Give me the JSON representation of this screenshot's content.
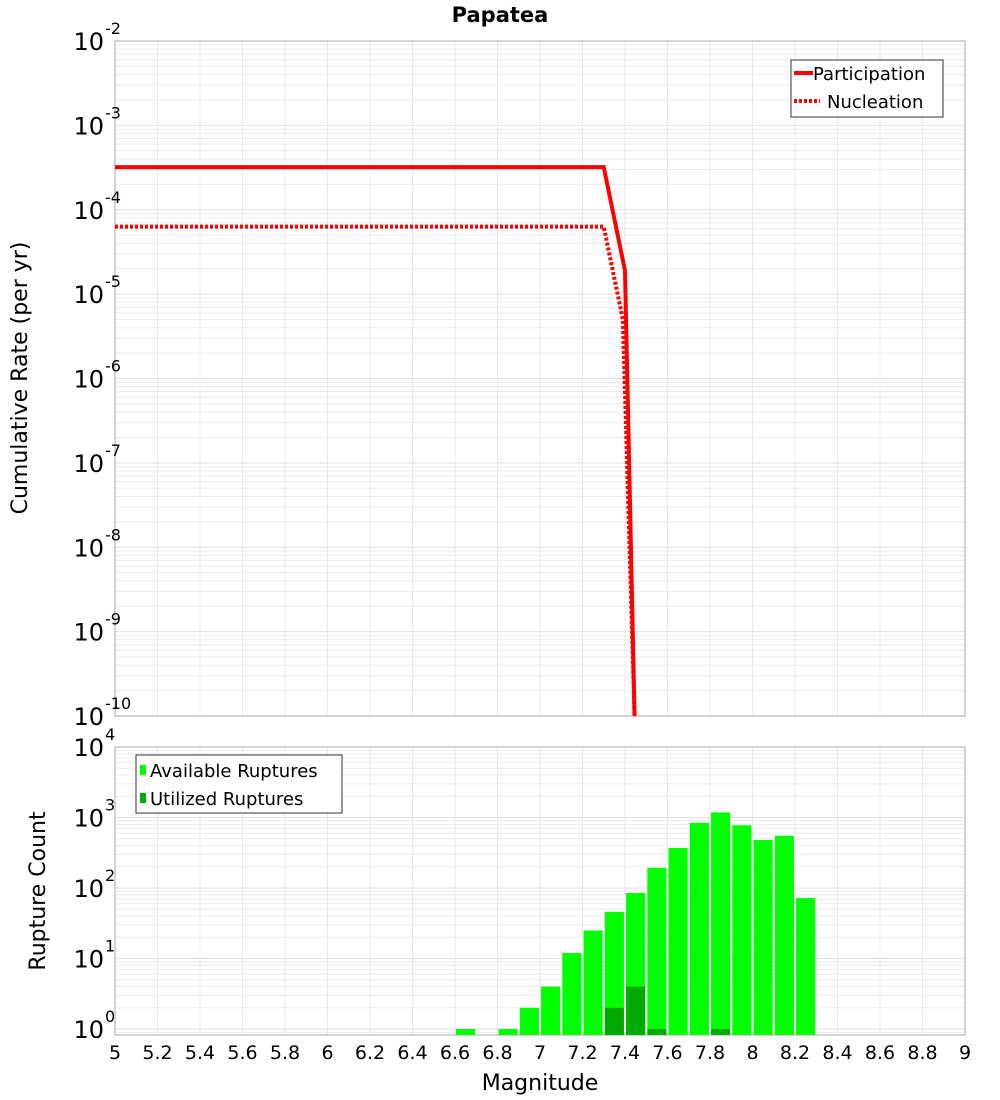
{
  "chart_data": [
    {
      "type": "line",
      "title": "Papatea",
      "xlabel": "Magnitude",
      "ylabel": "Cumulative Rate (per yr)",
      "xlim": [
        5,
        9
      ],
      "ylim_log10": [
        -10,
        -2
      ],
      "yscale": "log",
      "grid": true,
      "legend_placement": "top-right",
      "y_tick_exponents": [
        "-2",
        "-3",
        "-4",
        "-5",
        "-6",
        "-7",
        "-8",
        "-9",
        "-10"
      ],
      "series": [
        {
          "name": "Participation",
          "color": "#ff0000",
          "style": "solid",
          "x": [
            5.0,
            7.3,
            7.4,
            7.445
          ],
          "y": [
            0.00032,
            0.00032,
            1.9e-05,
            1e-10
          ]
        },
        {
          "name": "Nucleation",
          "color": "#ff0000",
          "style": "dotted",
          "x": [
            5.0,
            7.3,
            7.39,
            7.445
          ],
          "y": [
            6.3e-05,
            6.3e-05,
            5e-06,
            1e-10
          ]
        }
      ]
    },
    {
      "type": "bar",
      "xlabel": "Magnitude",
      "ylabel": "Rupture Count",
      "xlim": [
        5,
        9
      ],
      "ylim_log10": [
        -0.085,
        4
      ],
      "yscale": "log",
      "grid": true,
      "legend_placement": "top-left",
      "x_ticks": [
        "5",
        "5.2",
        "5.4",
        "5.6",
        "5.8",
        "6",
        "6.2",
        "6.4",
        "6.6",
        "6.8",
        "7",
        "7.2",
        "7.4",
        "7.6",
        "7.8",
        "8",
        "8.2",
        "8.4",
        "8.6",
        "8.8",
        "9"
      ],
      "y_tick_exponents": [
        "0",
        "1",
        "2",
        "3",
        "4"
      ],
      "bin_width": 0.1,
      "series": [
        {
          "name": "Available Ruptures",
          "color": "#00ff00",
          "x": [
            6.65,
            6.85,
            6.95,
            7.05,
            7.15,
            7.25,
            7.35,
            7.45,
            7.55,
            7.65,
            7.75,
            7.85,
            7.95,
            8.05,
            8.15,
            8.25
          ],
          "values": [
            1,
            1,
            2,
            4,
            12,
            25,
            46,
            85,
            193,
            370,
            840,
            1180,
            775,
            480,
            550,
            72
          ]
        },
        {
          "name": "Utilized Ruptures",
          "color": "#00aa00",
          "x": [
            7.35,
            7.45,
            7.55,
            7.85
          ],
          "values": [
            2,
            4,
            1,
            1
          ]
        }
      ]
    }
  ]
}
